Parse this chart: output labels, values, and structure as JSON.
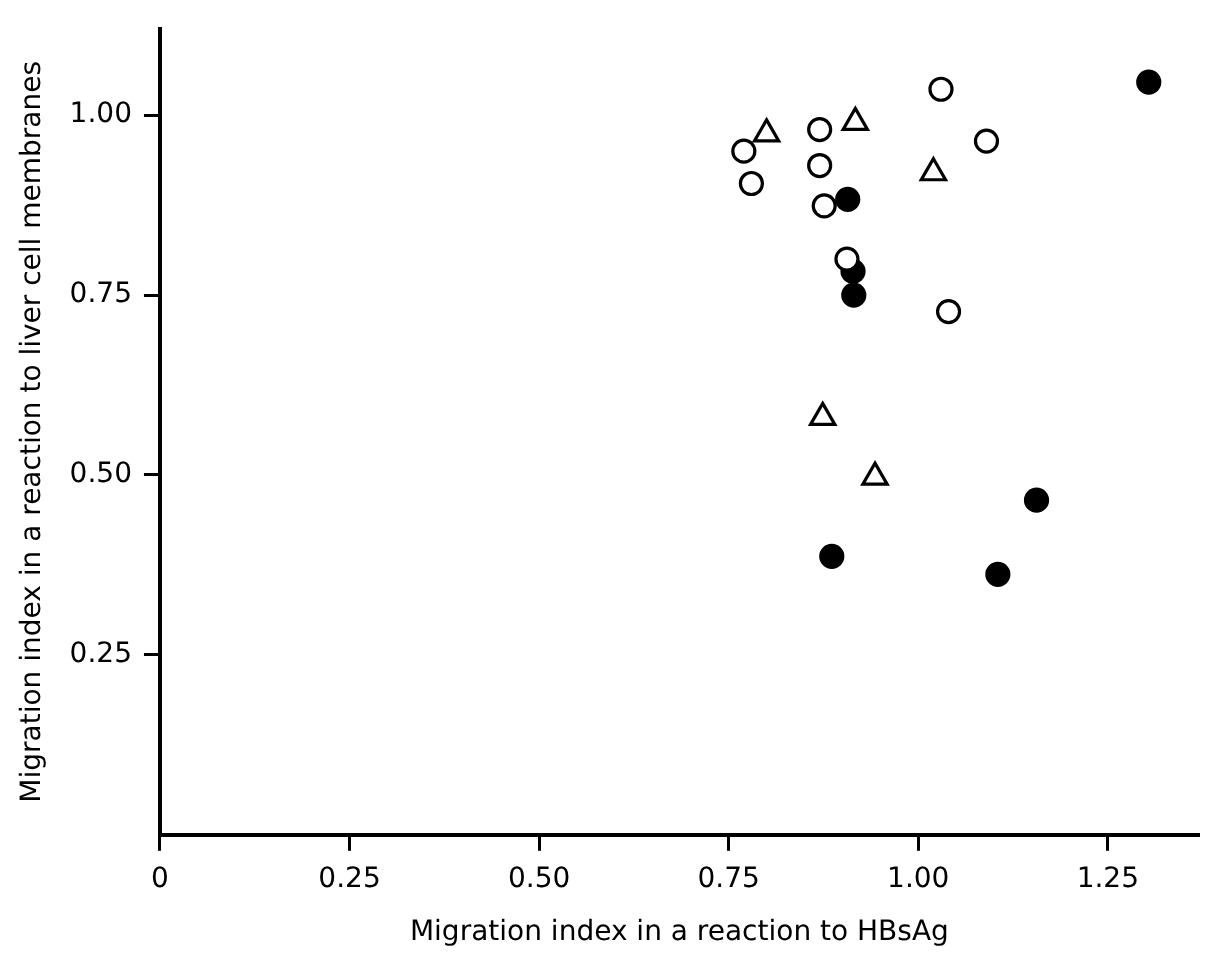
{
  "chart_data": {
    "type": "scatter",
    "xlabel": "Migration index in a reaction to HBsAg",
    "ylabel": "Migration index in a reaction to liver cell membranes",
    "xlim": [
      0,
      1.37
    ],
    "ylim": [
      0,
      1.12
    ],
    "xticks": [
      {
        "value": 0,
        "label": "0"
      },
      {
        "value": 0.25,
        "label": "0.25"
      },
      {
        "value": 0.5,
        "label": "0.50"
      },
      {
        "value": 0.75,
        "label": "0.75"
      },
      {
        "value": 1,
        "label": "1.00"
      },
      {
        "value": 1.25,
        "label": "1.25"
      }
    ],
    "yticks": [
      {
        "value": 0.25,
        "label": "0.25"
      },
      {
        "value": 0.5,
        "label": "0.50"
      },
      {
        "value": 0.75,
        "label": "0.75"
      },
      {
        "value": 1,
        "label": "1.00"
      }
    ],
    "grid": false,
    "legend": false,
    "series": [
      {
        "marker": "circle",
        "color": "#ffffff",
        "x": [
          0.77,
          0.78,
          0.87,
          0.87,
          0.876,
          0.906,
          1.03,
          1.09,
          1.04
        ],
        "values": [
          0.95,
          0.905,
          0.98,
          0.93,
          0.874,
          0.8,
          1.036,
          0.964,
          0.727
        ]
      },
      {
        "marker": "triangle",
        "color": "#ffffff",
        "x": [
          0.8,
          0.917,
          1.02,
          0.874,
          0.943
        ],
        "values": [
          0.974,
          0.99,
          0.92,
          0.58,
          0.497
        ]
      },
      {
        "marker": "circle",
        "color": "#000000",
        "x": [
          0.907,
          0.914,
          0.915,
          1.304,
          0.886,
          1.105,
          1.156
        ],
        "values": [
          0.883,
          0.783,
          0.75,
          1.046,
          0.387,
          0.362,
          0.465
        ]
      }
    ]
  }
}
